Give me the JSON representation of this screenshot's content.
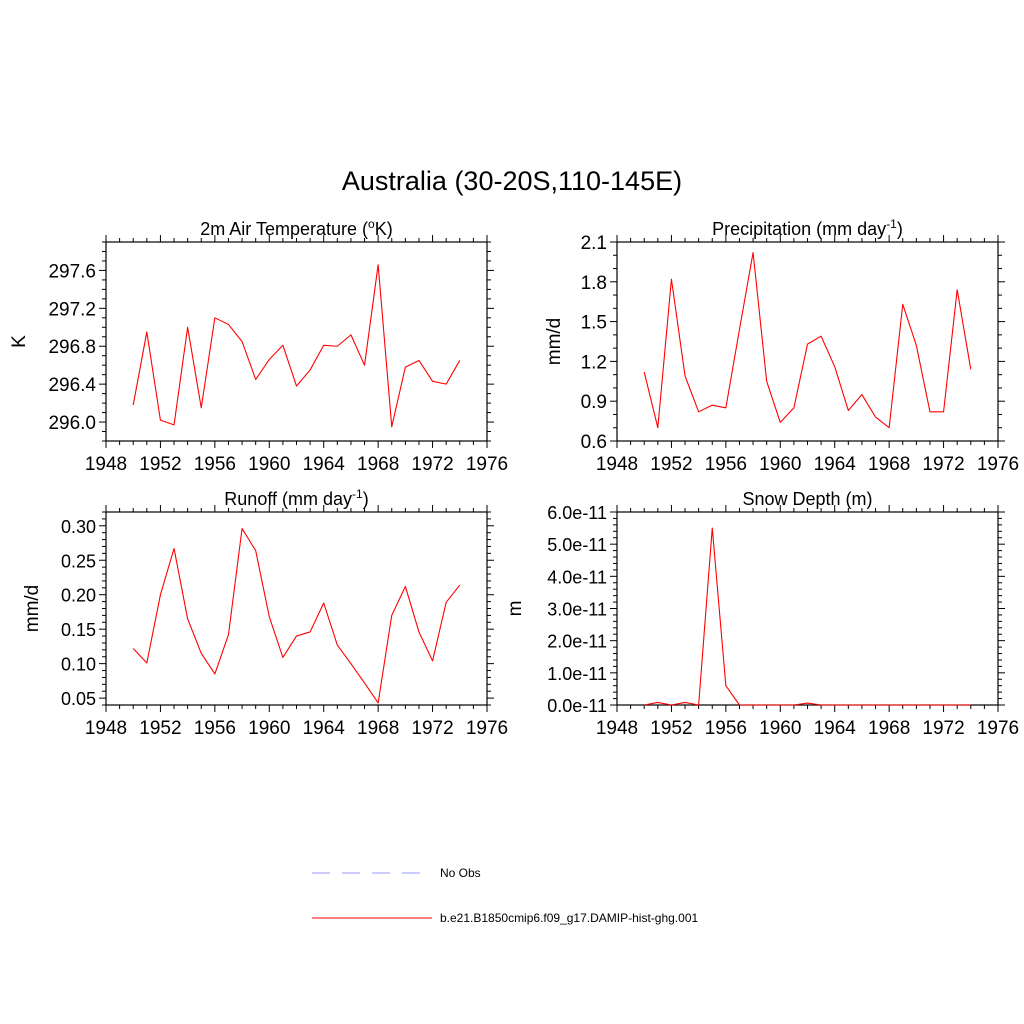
{
  "title": "Australia (30-20S,110-145E)",
  "chart_data": [
    {
      "type": "line",
      "title": "2m Air Temperature (°K)",
      "title_parts": [
        "2m Air Temperature (",
        "o",
        "K)"
      ],
      "ylabel": "K",
      "xlabel": "",
      "xlim": [
        1948,
        1976
      ],
      "ylim": [
        295.8,
        297.9
      ],
      "x_ticks": [
        1948,
        1952,
        1956,
        1960,
        1964,
        1968,
        1972,
        1976
      ],
      "y_ticks": [
        296.0,
        296.4,
        296.8,
        297.2,
        297.6
      ],
      "y_tick_labels": [
        "296.0",
        "296.4",
        "296.8",
        "297.2",
        "297.6"
      ],
      "x": [
        1950,
        1951,
        1952,
        1953,
        1954,
        1955,
        1956,
        1957,
        1958,
        1959,
        1960,
        1961,
        1962,
        1963,
        1964,
        1965,
        1966,
        1967,
        1968,
        1969,
        1970,
        1971,
        1972,
        1973,
        1974
      ],
      "series": [
        {
          "name": "b.e21.B1850cmip6.f09_g17.DAMIP-hist-ghg.001",
          "values": [
            296.18,
            296.95,
            296.02,
            295.97,
            297.0,
            296.15,
            297.1,
            297.03,
            296.85,
            296.45,
            296.66,
            296.81,
            296.38,
            296.55,
            296.81,
            296.8,
            296.92,
            296.6,
            297.66,
            295.95,
            296.58,
            296.65,
            296.43,
            296.4,
            296.65
          ]
        }
      ]
    },
    {
      "type": "line",
      "title": "Precipitation (mm day-1)",
      "title_parts": [
        "Precipitation (mm day",
        "-1",
        ")"
      ],
      "ylabel": "mm/d",
      "xlabel": "",
      "xlim": [
        1948,
        1976
      ],
      "ylim": [
        0.6,
        2.1
      ],
      "x_ticks": [
        1948,
        1952,
        1956,
        1960,
        1964,
        1968,
        1972,
        1976
      ],
      "y_ticks": [
        0.6,
        0.9,
        1.2,
        1.5,
        1.8,
        2.1
      ],
      "y_tick_labels": [
        "0.6",
        "0.9",
        "1.2",
        "1.5",
        "1.8",
        "2.1"
      ],
      "x": [
        1950,
        1951,
        1952,
        1953,
        1954,
        1955,
        1956,
        1957,
        1958,
        1959,
        1960,
        1961,
        1962,
        1963,
        1964,
        1965,
        1966,
        1967,
        1968,
        1969,
        1970,
        1971,
        1972,
        1973,
        1974
      ],
      "series": [
        {
          "name": "b.e21.B1850cmip6.f09_g17.DAMIP-hist-ghg.001",
          "values": [
            1.12,
            0.7,
            1.82,
            1.09,
            0.82,
            0.87,
            0.85,
            1.44,
            2.02,
            1.05,
            0.74,
            0.85,
            1.33,
            1.39,
            1.16,
            0.83,
            0.95,
            0.78,
            0.7,
            1.63,
            1.32,
            0.82,
            0.82,
            1.74,
            1.14
          ]
        }
      ]
    },
    {
      "type": "line",
      "title": "Runoff (mm day-1)",
      "title_parts": [
        "Runoff (mm day",
        "-1",
        ")"
      ],
      "ylabel": "mm/d",
      "xlabel": "",
      "xlim": [
        1948,
        1976
      ],
      "ylim": [
        0.04,
        0.32
      ],
      "x_ticks": [
        1948,
        1952,
        1956,
        1960,
        1964,
        1968,
        1972,
        1976
      ],
      "y_ticks": [
        0.05,
        0.1,
        0.15,
        0.2,
        0.25,
        0.3
      ],
      "y_tick_labels": [
        "0.05",
        "0.10",
        "0.15",
        "0.20",
        "0.25",
        "0.30"
      ],
      "x": [
        1950,
        1951,
        1952,
        1953,
        1954,
        1955,
        1956,
        1957,
        1958,
        1959,
        1960,
        1961,
        1962,
        1963,
        1964,
        1965,
        1966,
        1967,
        1968,
        1969,
        1970,
        1971,
        1972,
        1973,
        1974
      ],
      "series": [
        {
          "name": "b.e21.B1850cmip6.f09_g17.DAMIP-hist-ghg.001",
          "values": [
            0.122,
            0.101,
            0.2,
            0.267,
            0.165,
            0.115,
            0.085,
            0.142,
            0.296,
            0.264,
            0.168,
            0.109,
            0.14,
            0.146,
            0.188,
            0.127,
            0.1,
            0.072,
            0.043,
            0.17,
            0.212,
            0.146,
            0.104,
            0.189,
            0.214
          ]
        }
      ]
    },
    {
      "type": "line",
      "title": "Snow Depth (m)",
      "title_parts": [
        "Snow Depth (m)",
        "",
        ""
      ],
      "ylabel": "m",
      "xlabel": "",
      "xlim": [
        1948,
        1976
      ],
      "ylim": [
        0,
        6e-11
      ],
      "x_ticks": [
        1948,
        1952,
        1956,
        1960,
        1964,
        1968,
        1972,
        1976
      ],
      "y_ticks": [
        0,
        1e-11,
        2e-11,
        3e-11,
        4e-11,
        5e-11,
        6e-11
      ],
      "y_tick_labels": [
        "0.0e-11",
        "1.0e-11",
        "2.0e-11",
        "3.0e-11",
        "4.0e-11",
        "5.0e-11",
        "6.0e-11"
      ],
      "x": [
        1950,
        1951,
        1952,
        1953,
        1954,
        1955,
        1956,
        1957,
        1958,
        1959,
        1960,
        1961,
        1962,
        1963,
        1964,
        1965,
        1966,
        1967,
        1968,
        1969,
        1970,
        1971,
        1972,
        1973,
        1974
      ],
      "series": [
        {
          "name": "b.e21.B1850cmip6.f09_g17.DAMIP-hist-ghg.001",
          "values": [
            0,
            8e-13,
            0,
            8e-13,
            0,
            5.5e-11,
            6e-12,
            0,
            0,
            0,
            0,
            0,
            6e-13,
            0,
            0,
            0,
            0,
            0,
            0,
            0,
            0,
            0,
            0,
            0,
            0
          ]
        }
      ]
    }
  ],
  "legend": [
    {
      "label": "No Obs",
      "color": "#9999ff",
      "style": "dashed"
    },
    {
      "label": "b.e21.B1850cmip6.f09_g17.DAMIP-hist-ghg.001",
      "color": "#ff0000",
      "style": "solid"
    }
  ],
  "colors": {
    "series": "#ff0000",
    "obs": "#9999ff",
    "axes": "#000000"
  }
}
